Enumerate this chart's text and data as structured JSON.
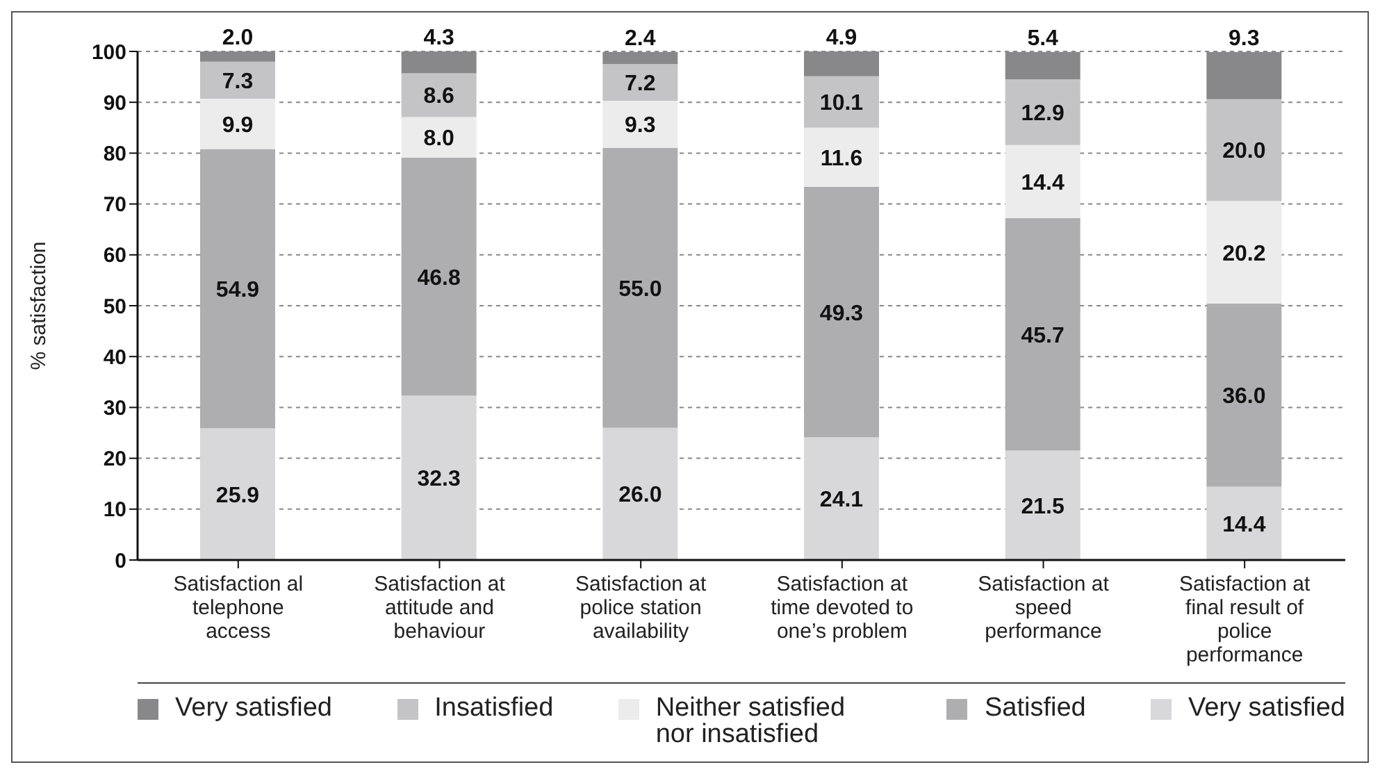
{
  "chart_data": {
    "type": "bar",
    "stacked": true,
    "ylabel": "% satisfaction",
    "categories": [
      "Satisfaction al telephone access",
      "Satisfaction at attitude and behaviour",
      "Satisfaction at police station availability",
      "Satisfaction at time devoted to one’s problem",
      "Satisfaction at speed performance",
      "Satisfaction at final result of police performance"
    ],
    "series": [
      {
        "name": "Very satisfied",
        "color": "#d8d8da",
        "values": [
          25.9,
          32.3,
          26.0,
          24.1,
          21.5,
          14.4
        ],
        "value_labels": [
          "25.9",
          "32.3",
          "26.0",
          "24.1",
          "21.5",
          "14.4"
        ]
      },
      {
        "name": "Satisfied",
        "color": "#aeaeb0",
        "values": [
          54.9,
          46.8,
          55.0,
          49.3,
          45.7,
          36.0
        ],
        "value_labels": [
          "54.9",
          "46.8",
          "55.0",
          "49.3",
          "45.7",
          "36.0"
        ]
      },
      {
        "name": "Neither satisfied nor insatisfied",
        "color": "#ececec",
        "values": [
          9.9,
          8.0,
          9.3,
          11.6,
          14.4,
          20.2
        ],
        "value_labels": [
          "9.9",
          "8.0",
          "9.3",
          "11.6",
          "14.4",
          "20.2"
        ]
      },
      {
        "name": "Insatisfied",
        "color": "#c4c4c6",
        "values": [
          7.3,
          8.6,
          7.2,
          10.1,
          12.9,
          20.0
        ],
        "value_labels": [
          "7.3",
          "8.6",
          "7.2",
          "10.1",
          "12.9",
          "20.0"
        ]
      },
      {
        "name": "Very satisfied",
        "color": "#88888b",
        "values": [
          2.0,
          4.3,
          2.4,
          4.9,
          5.4,
          9.3
        ],
        "value_labels": [
          "2.0",
          "4.3",
          "2.4",
          "4.9",
          "5.4",
          "9.3"
        ]
      }
    ],
    "ylim": [
      0,
      100
    ],
    "yticks": [
      0,
      10,
      20,
      30,
      40,
      50,
      60,
      70,
      80,
      90,
      100
    ],
    "grid": "y",
    "legend": "bottom"
  }
}
